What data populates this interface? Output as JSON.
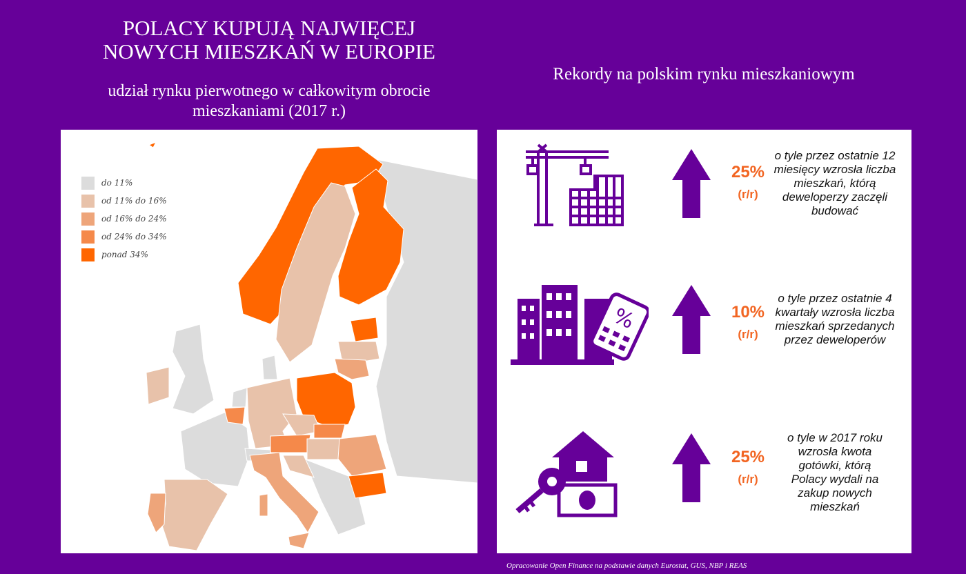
{
  "left": {
    "title_line1": "POLACY KUPUJĄ NAJWIĘCEJ",
    "title_line2": "NOWYCH MIESZKAŃ W EUROPIE",
    "subtitle_line1": "udział rynku pierwotnego w całkowitym obrocie",
    "subtitle_line2": "mieszkaniami (2017 r.)"
  },
  "legend": [
    {
      "label": "do 11%",
      "color": "#dcdcdc"
    },
    {
      "label": "od 11% do 16%",
      "color": "#e8c2aa"
    },
    {
      "label": "od 16% do 24%",
      "color": "#eea57a"
    },
    {
      "label": "od 24% do 34%",
      "color": "#f5894a"
    },
    {
      "label": "ponad 34%",
      "color": "#ff6600"
    }
  ],
  "right": {
    "title": "Rekordy na polskim rynku mieszkaniowym"
  },
  "stats": [
    {
      "value": "25%",
      "unit": "(r/r)",
      "desc": "o tyle przez ostatnie 12 miesięcy wzrosła liczba mieszkań, którą deweloperzy zaczęli budować",
      "icon": "crane-building-icon"
    },
    {
      "value": "10%",
      "unit": "(r/r)",
      "desc": "o tyle przez ostatnie 4 kwartały wzrosła liczba mieszkań sprzedanych przez deweloperów",
      "icon": "buildings-calculator-icon"
    },
    {
      "value": "25%",
      "unit": "(r/r)",
      "desc": "o tyle w 2017 roku wzrosła kwota gotówki, którą Polacy wydali na zakup nowych mieszkań",
      "icon": "house-key-money-icon"
    }
  ],
  "colors": {
    "background": "#660099",
    "accent": "#f26522"
  },
  "footer": "Opracowanie Open Finance na podstawie danych Eurostat, GUS, NBP i REAS"
}
